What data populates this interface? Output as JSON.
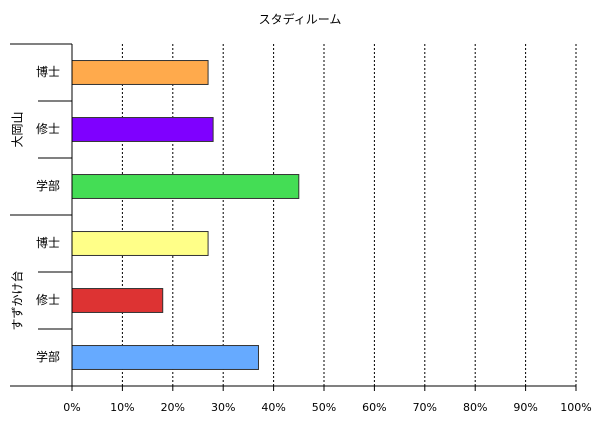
{
  "chart_data": {
    "type": "bar",
    "orientation": "horizontal",
    "title": "スタディルーム",
    "groups": [
      {
        "name": "大岡山",
        "categories": [
          "博士",
          "修士",
          "学部"
        ],
        "values": [
          27,
          28,
          45
        ],
        "colors": [
          "#ffaa4c",
          "#7f00ff",
          "#44dd55"
        ]
      },
      {
        "name": "すずかけ台",
        "categories": [
          "博士",
          "修士",
          "学部"
        ],
        "values": [
          27,
          18,
          37
        ],
        "colors": [
          "#ffff88",
          "#dd3333",
          "#66aaff"
        ]
      }
    ],
    "xlim": [
      0,
      100
    ],
    "xticks": [
      {
        "value": 0,
        "label": "0%"
      },
      {
        "value": 10,
        "label": "10%"
      },
      {
        "value": 20,
        "label": "20%"
      },
      {
        "value": 30,
        "label": "30%"
      },
      {
        "value": 40,
        "label": "40%"
      },
      {
        "value": 50,
        "label": "50%"
      },
      {
        "value": 60,
        "label": "60%"
      },
      {
        "value": 70,
        "label": "70%"
      },
      {
        "value": 80,
        "label": "80%"
      },
      {
        "value": 90,
        "label": "90%"
      },
      {
        "value": 100,
        "label": "100%"
      }
    ],
    "grid": true
  }
}
